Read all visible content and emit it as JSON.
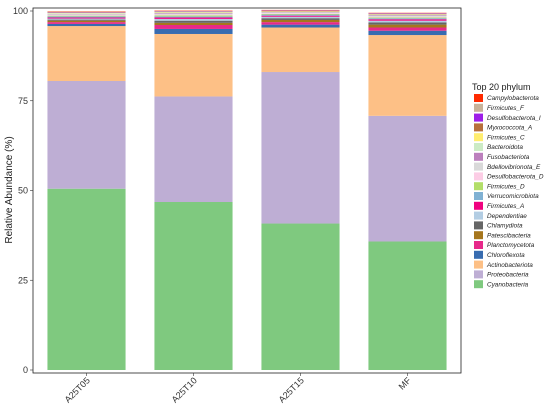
{
  "chart_data": {
    "type": "bar",
    "stacked": true,
    "ylabel": "Relative Abundance (%)",
    "xlabel": "",
    "ylim": [
      0,
      100
    ],
    "yticks": [
      0,
      25,
      50,
      75,
      100
    ],
    "grid": false,
    "legend_title": "Top 20 phylum",
    "legend_position": "right",
    "categories": [
      "A25T05",
      "A25T10",
      "A25T15",
      "MF"
    ],
    "series": [
      {
        "name": "Cyanobacteria",
        "color": "#7fc97f",
        "values": [
          50.5,
          46.8,
          40.8,
          35.8
        ]
      },
      {
        "name": "Proteobacteria",
        "color": "#beaed4",
        "values": [
          30.0,
          29.4,
          42.2,
          35.0
        ]
      },
      {
        "name": "Actinobacteriota",
        "color": "#fdc086",
        "values": [
          15.3,
          17.4,
          12.4,
          22.5
        ]
      },
      {
        "name": "Chloroflexota",
        "color": "#386cb0",
        "values": [
          0.6,
          1.4,
          0.8,
          1.2
        ]
      },
      {
        "name": "Planctomycetota",
        "color": "#e7298a",
        "values": [
          0.5,
          1.1,
          0.7,
          0.9
        ]
      },
      {
        "name": "Patescibacteria",
        "color": "#a6761d",
        "values": [
          0.4,
          0.6,
          0.6,
          0.8
        ]
      },
      {
        "name": "Chlamydiota",
        "color": "#666666",
        "values": [
          0.3,
          0.6,
          0.5,
          0.6
        ]
      },
      {
        "name": "Dependentiae",
        "color": "#b3cde3",
        "values": [
          0.3,
          0.5,
          0.4,
          0.5
        ]
      },
      {
        "name": "Firmicutes_A",
        "color": "#f0027f",
        "values": [
          0.3,
          0.4,
          0.3,
          0.4
        ]
      },
      {
        "name": "Verrucomicrobiota",
        "color": "#80b1d3",
        "values": [
          0.3,
          0.3,
          0.3,
          0.3
        ]
      },
      {
        "name": "Firmicutes_D",
        "color": "#b3de69",
        "values": [
          0.2,
          0.3,
          0.2,
          0.2
        ]
      },
      {
        "name": "Desulfobacterota_D",
        "color": "#fccde5",
        "values": [
          0.2,
          0.2,
          0.2,
          0.2
        ]
      },
      {
        "name": "Bdellovibrionota_E",
        "color": "#d9d9d9",
        "values": [
          0.2,
          0.2,
          0.2,
          0.2
        ]
      },
      {
        "name": "Fusobacteriota",
        "color": "#bc80bd",
        "values": [
          0.1,
          0.2,
          0.1,
          0.2
        ]
      },
      {
        "name": "Bacteroidota",
        "color": "#ccebc5",
        "values": [
          0.2,
          0.2,
          0.1,
          0.2
        ]
      },
      {
        "name": "Firmicutes_C",
        "color": "#ffed6f",
        "values": [
          0.1,
          0.1,
          0.1,
          0.1
        ]
      },
      {
        "name": "Myxococcota_A",
        "color": "#b8703b",
        "values": [
          0.1,
          0.1,
          0.1,
          0.1
        ]
      },
      {
        "name": "Desulfobacterota_I",
        "color": "#9e1fe8",
        "values": [
          0.1,
          0.1,
          0.1,
          0.1
        ]
      },
      {
        "name": "Firmicutes_F",
        "color": "#c8b39a",
        "values": [
          0.1,
          0.1,
          0.1,
          0.1
        ]
      },
      {
        "name": "Campylobacterota",
        "color": "#ff2a00",
        "values": [
          0.1,
          0.1,
          0.1,
          0.1
        ]
      }
    ]
  }
}
